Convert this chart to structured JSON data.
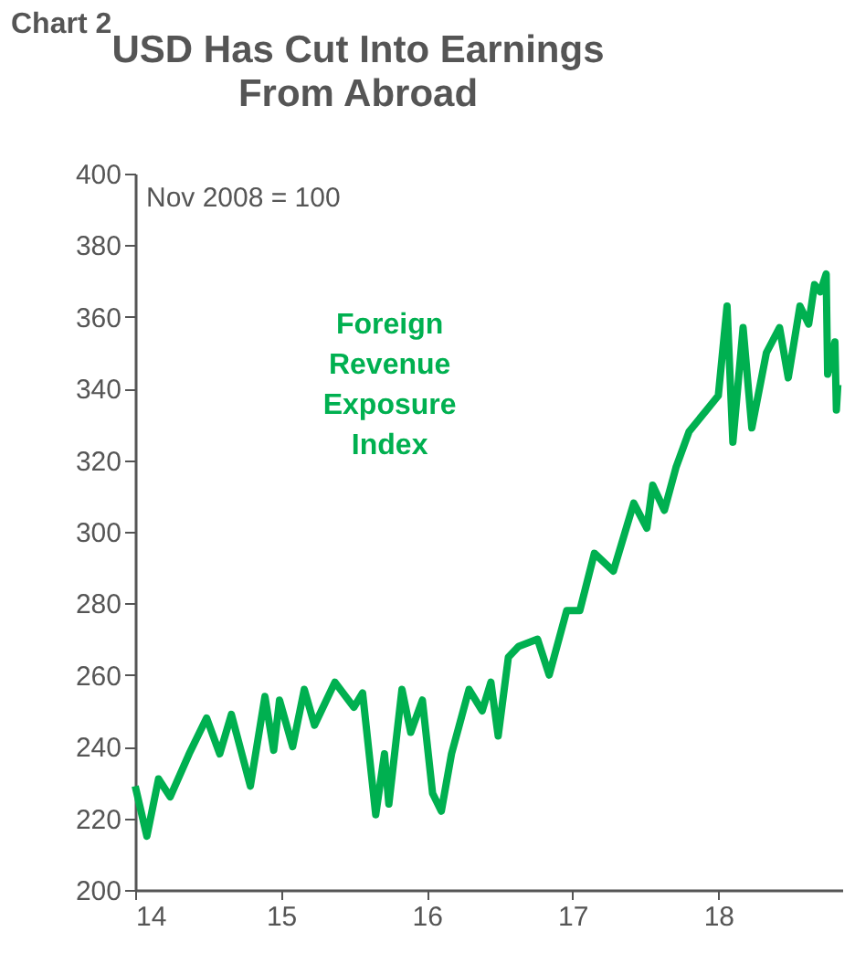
{
  "chart_data": {
    "type": "line",
    "title": "USD Has Cut Into Earnings From Abroad",
    "annotations": [
      "Chart 2",
      "Nov 2008 = 100"
    ],
    "x": [
      14.0,
      14.08,
      14.16,
      14.24,
      14.37,
      14.49,
      14.58,
      14.66,
      14.79,
      14.89,
      14.95,
      14.99,
      15.08,
      15.16,
      15.23,
      15.37,
      15.5,
      15.56,
      15.65,
      15.71,
      15.74,
      15.83,
      15.89,
      15.97,
      16.04,
      16.1,
      16.17,
      16.29,
      16.38,
      16.44,
      16.49,
      16.56,
      16.63,
      16.76,
      16.84,
      16.96,
      17.05,
      17.15,
      17.28,
      17.42,
      17.51,
      17.55,
      17.63,
      17.71,
      17.8,
      17.92,
      18.0,
      18.06,
      18.1,
      18.17,
      18.23,
      18.33,
      18.42,
      18.48,
      18.56,
      18.62,
      18.66,
      18.7,
      18.74,
      18.75,
      18.8,
      18.81,
      18.82
    ],
    "series": [
      {
        "name": "Foreign Revenue Exposure Index",
        "color": "#00b050",
        "values": [
          229,
          215,
          231,
          226,
          238,
          248,
          238,
          249,
          229,
          254,
          239,
          253,
          240,
          256,
          246,
          258,
          251,
          255,
          221,
          238,
          224,
          256,
          244,
          253,
          227,
          222,
          238,
          256,
          250,
          258,
          243,
          265,
          268,
          270,
          260,
          278,
          278,
          294,
          289,
          308,
          301,
          313,
          306,
          318,
          328,
          334,
          338,
          363,
          325,
          357,
          329,
          350,
          357,
          343,
          363,
          358,
          369,
          367,
          372,
          344,
          353,
          334,
          341
        ]
      }
    ],
    "xlim": [
      14,
      18.85
    ],
    "xticks": [
      14,
      15,
      16,
      17,
      18
    ],
    "ylim": [
      200,
      400
    ],
    "yticks": [
      200,
      220,
      240,
      260,
      280,
      300,
      320,
      340,
      360,
      380,
      400
    ],
    "grid": false,
    "line_style": "solid",
    "marker": "none"
  }
}
